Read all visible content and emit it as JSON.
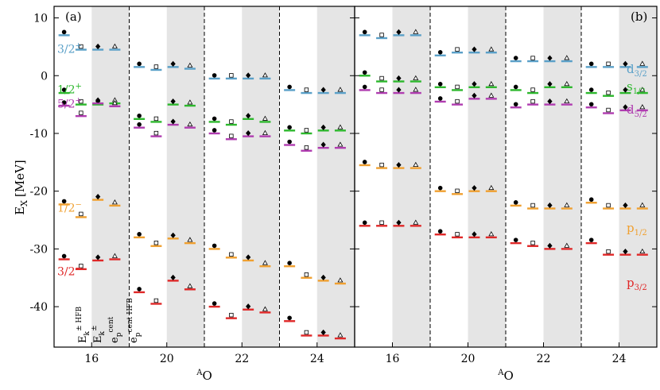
{
  "chart_data": {
    "type": "scatter",
    "ylabel": "E",
    "ylabel_sub": "X",
    "ylabel_unit": "[MeV]",
    "ylim": [
      -47,
      12
    ],
    "yticks": [
      10,
      0,
      -10,
      -20,
      -30,
      -40
    ],
    "xlabel_sup": "A",
    "xlabel_main": "O",
    "xticks": [
      "16",
      "20",
      "22",
      "24"
    ],
    "grid": false,
    "panels": [
      {
        "label": "(a)",
        "levels": [
          {
            "name": "3/2+",
            "color": "#5aa0c8"
          },
          {
            "name": "1/2+",
            "color": "#2db82d"
          },
          {
            "name": "5/2+",
            "color": "#b03cb0"
          },
          {
            "name": "1/2−",
            "color": "#f0a030"
          },
          {
            "name": "3/2−",
            "color": "#e02828"
          }
        ],
        "methods": [
          {
            "label": "E",
            "sub": "k",
            "sup": "± HFB"
          },
          {
            "label": "E",
            "sub": "k",
            "sup": "±"
          },
          {
            "label": "e",
            "sub": "p",
            "sup": "cent"
          },
          {
            "label": "e",
            "sub": "p",
            "sup": "cent HFB"
          }
        ]
      },
      {
        "label": "(b)",
        "levels": [
          {
            "name": "d3/2",
            "text": "d",
            "sub": "3/2",
            "color": "#5aa0c8"
          },
          {
            "name": "s1/2",
            "text": "s",
            "sub": "1/2",
            "color": "#2db82d"
          },
          {
            "name": "d5/2",
            "text": "d",
            "sub": "5/2",
            "color": "#b03cb0"
          },
          {
            "name": "p1/2",
            "text": "p",
            "sub": "1/2",
            "color": "#f0a030"
          },
          {
            "name": "p3/2",
            "text": "p",
            "sub": "3/2",
            "color": "#e02828"
          }
        ]
      }
    ],
    "series": [
      {
        "panel": "a",
        "isotope": 16,
        "levels": {
          "3/2+": [
            7.0,
            4.5,
            4.5,
            4.5
          ],
          "1/2+": [
            -3.0,
            -5.0,
            -5.0,
            -4.8
          ],
          "5/2+": [
            -5.2,
            -7.0,
            -4.8,
            -5.3
          ],
          "1/2−": [
            -22.3,
            -24.5,
            -21.5,
            -22.5
          ],
          "3/2−": [
            -31.8,
            -33.5,
            -32.0,
            -31.8
          ]
        }
      },
      {
        "panel": "a",
        "isotope": 20,
        "levels": {
          "3/2+": [
            1.5,
            1.0,
            1.5,
            1.2
          ],
          "1/2+": [
            -7.5,
            -8.0,
            -5.0,
            -5.2
          ],
          "5/2+": [
            -9.0,
            -10.5,
            -8.5,
            -9.0
          ],
          "1/2−": [
            -28.0,
            -29.5,
            -28.2,
            -29.0
          ],
          "3/2−": [
            -37.5,
            -39.5,
            -35.5,
            -37.0
          ]
        }
      },
      {
        "panel": "a",
        "isotope": 22,
        "levels": {
          "3/2+": [
            -0.5,
            -0.5,
            -0.5,
            -0.5
          ],
          "1/2+": [
            -8.0,
            -8.5,
            -7.5,
            -8.0
          ],
          "5/2+": [
            -10.0,
            -11.0,
            -10.5,
            -10.5
          ],
          "1/2−": [
            -30.0,
            -31.5,
            -32.0,
            -33.0
          ],
          "3/2−": [
            -40.0,
            -42.0,
            -40.5,
            -41.0
          ]
        }
      },
      {
        "panel": "a",
        "isotope": 24,
        "levels": {
          "3/2+": [
            -2.5,
            -3.0,
            -3.0,
            -3.0
          ],
          "1/2+": [
            -9.5,
            -10.0,
            -9.5,
            -9.5
          ],
          "5/2+": [
            -12.0,
            -13.0,
            -12.5,
            -12.5
          ],
          "1/2−": [
            -33.0,
            -35.0,
            -35.5,
            -36.0
          ],
          "3/2−": [
            -42.5,
            -45.0,
            -45.0,
            -45.5
          ]
        }
      },
      {
        "panel": "b",
        "isotope": 16,
        "levels": {
          "d3/2": [
            7.0,
            6.5,
            7.0,
            7.0
          ],
          "s1/2": [
            0.0,
            -1.0,
            -1.0,
            -1.0
          ],
          "d5/2": [
            -2.5,
            -3.0,
            -3.0,
            -3.0
          ],
          "p1/2": [
            -15.5,
            -16.0,
            -16.0,
            -16.0
          ],
          "p3/2": [
            -26.0,
            -26.0,
            -26.0,
            -26.0
          ]
        }
      },
      {
        "panel": "b",
        "isotope": 20,
        "levels": {
          "d3/2": [
            3.5,
            4.0,
            4.0,
            4.0
          ],
          "s1/2": [
            -2.0,
            -2.5,
            -2.0,
            -2.0
          ],
          "d5/2": [
            -4.5,
            -5.0,
            -4.0,
            -4.0
          ],
          "p1/2": [
            -20.0,
            -20.5,
            -20.0,
            -20.0
          ],
          "p3/2": [
            -27.5,
            -28.0,
            -28.0,
            -28.0
          ]
        }
      },
      {
        "panel": "b",
        "isotope": 22,
        "levels": {
          "d3/2": [
            2.5,
            2.5,
            2.5,
            2.5
          ],
          "s1/2": [
            -2.5,
            -3.0,
            -2.0,
            -2.0
          ],
          "d5/2": [
            -5.5,
            -5.0,
            -5.0,
            -5.0
          ],
          "p1/2": [
            -22.5,
            -23.0,
            -23.0,
            -23.0
          ],
          "p3/2": [
            -29.0,
            -29.5,
            -30.0,
            -30.0
          ]
        }
      },
      {
        "panel": "b",
        "isotope": 24,
        "levels": {
          "d3/2": [
            1.5,
            1.5,
            1.5,
            1.5
          ],
          "s1/2": [
            -3.0,
            -3.5,
            -3.0,
            -3.0
          ],
          "d5/2": [
            -5.5,
            -6.5,
            -6.0,
            -6.0
          ],
          "p1/2": [
            -22.0,
            -23.0,
            -23.0,
            -23.0
          ],
          "p3/2": [
            -29.0,
            -31.0,
            -31.0,
            -31.0
          ]
        }
      }
    ]
  }
}
